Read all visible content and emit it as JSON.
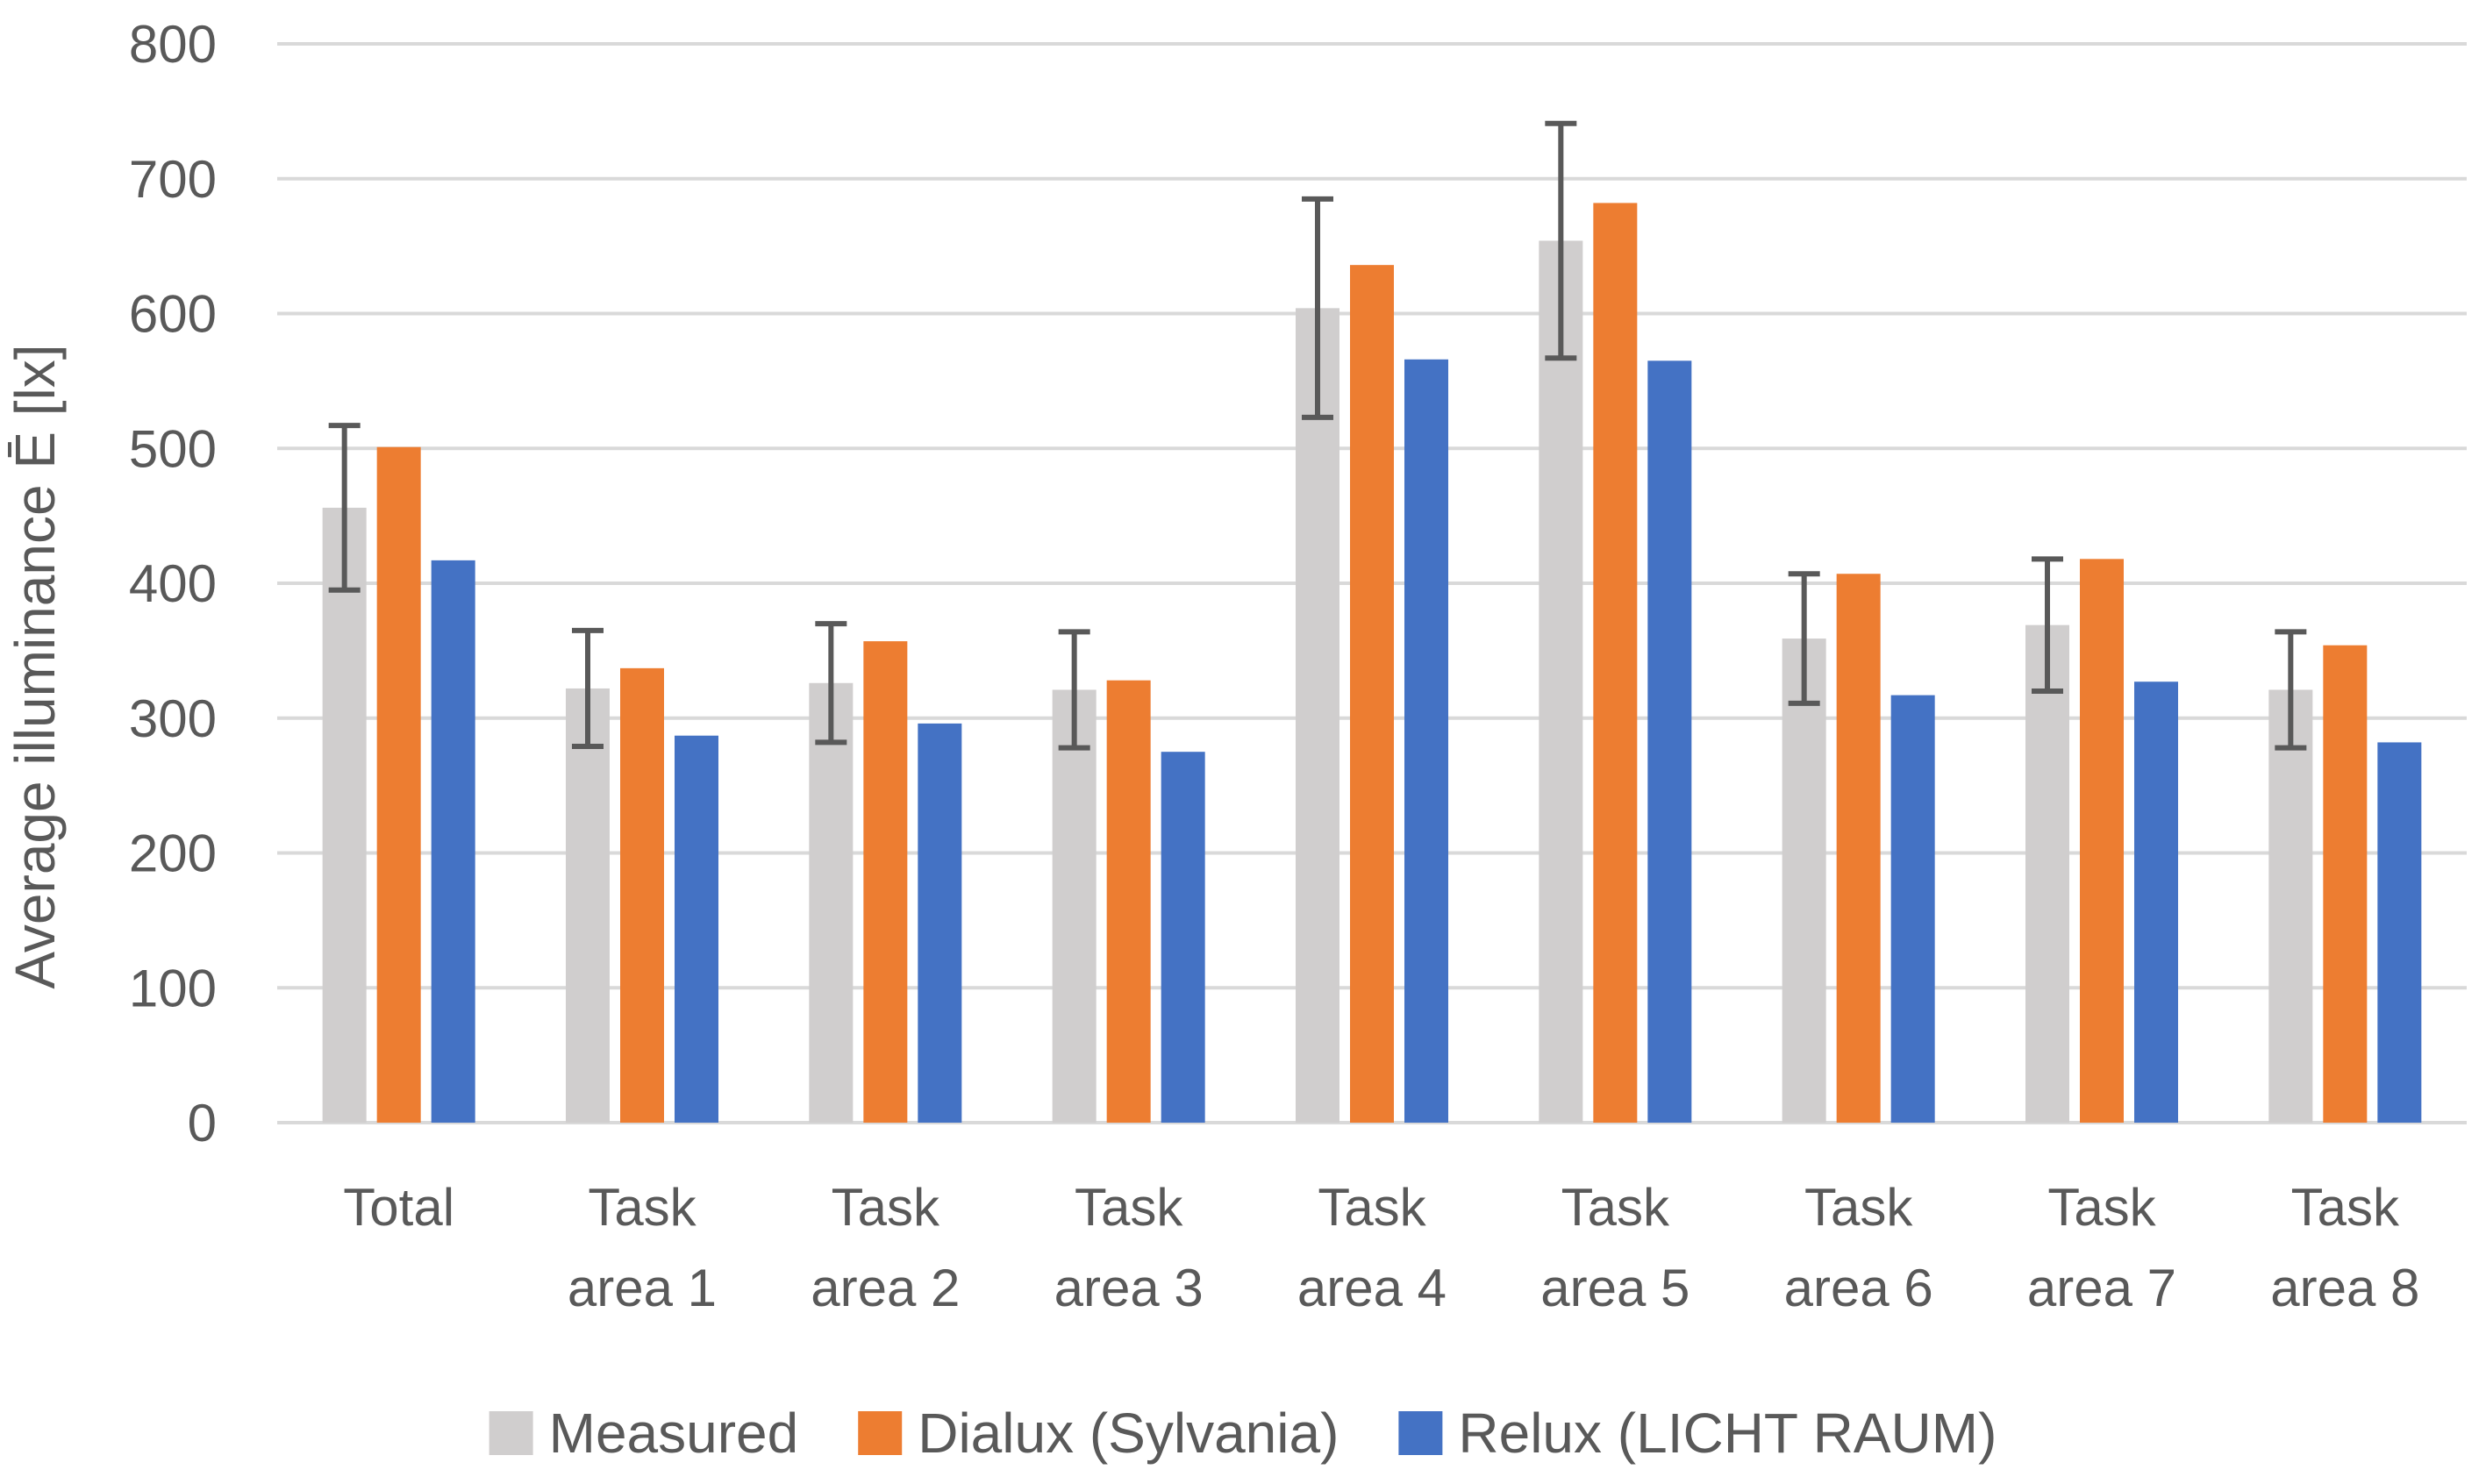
{
  "chart_data": {
    "type": "bar",
    "title": "",
    "xlabel": "",
    "ylabel": "Average illuminance  Ē [lx]",
    "ylim": [
      0,
      800
    ],
    "yticks": [
      0,
      100,
      200,
      300,
      400,
      500,
      600,
      700,
      800
    ],
    "grid": true,
    "legend_position": "bottom",
    "categories": [
      [
        "Total"
      ],
      [
        "Task",
        "area 1"
      ],
      [
        "Task",
        "area 2"
      ],
      [
        "Task",
        "area 3"
      ],
      [
        "Task",
        "area 4"
      ],
      [
        "Task",
        "area 5"
      ],
      [
        "Task",
        "area 6"
      ],
      [
        "Task",
        "area 7"
      ],
      [
        "Task",
        "area 8"
      ]
    ],
    "series": [
      {
        "name": "Measured",
        "color": "#d0cece",
        "values": [
          456,
          322,
          326,
          321,
          604,
          654,
          359,
          369,
          321
        ],
        "error": [
          61,
          43,
          44,
          43,
          81,
          87,
          48,
          49,
          43
        ]
      },
      {
        "name": "Dialux (Sylvania)",
        "color": "#ed7d31",
        "values": [
          501,
          337,
          357,
          328,
          636,
          682,
          407,
          418,
          354
        ]
      },
      {
        "name": "Relux (LICHT RAUM)",
        "color": "#4472c4",
        "values": [
          417,
          287,
          296,
          275,
          566,
          565,
          317,
          327,
          282
        ]
      }
    ]
  }
}
